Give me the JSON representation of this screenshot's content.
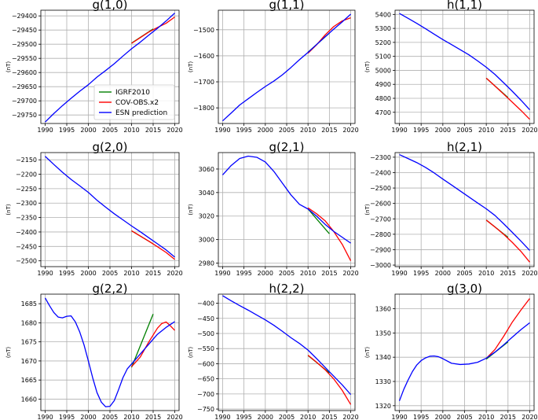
{
  "colors": {
    "igrf": "#008000",
    "cov": "#ff0000",
    "esn": "#0000ff",
    "grid": "#b0b0b0"
  },
  "legend": [
    "IGRF2010",
    "COV-OBS.x2",
    "ESN prediction"
  ],
  "chart_data": [
    {
      "type": "line",
      "title": "g(1,0)",
      "ylabel": "(nT)",
      "xlim": [
        1989,
        2021
      ],
      "ylim": [
        -29780,
        -29380
      ],
      "xticks": [
        1990,
        1995,
        2000,
        2005,
        2010,
        2015,
        2020
      ],
      "yticks": [
        -29750,
        -29700,
        -29650,
        -29600,
        -29550,
        -29500,
        -29450,
        -29400
      ],
      "series": [
        {
          "name": "IGRF2010",
          "x": [
            2010,
            2015
          ],
          "y": [
            -29496,
            -29446
          ]
        },
        {
          "name": "COV-OBS.x2",
          "x": [
            2010,
            2012,
            2014,
            2016,
            2018,
            2020
          ],
          "y": [
            -29497,
            -29477,
            -29457,
            -29441,
            -29426,
            -29404
          ]
        },
        {
          "name": "ESN prediction",
          "x": [
            1990,
            1992,
            1994,
            1996,
            1998,
            2000,
            2002,
            2004,
            2006,
            2008,
            2010,
            2012,
            2014,
            2016,
            2018,
            2020
          ],
          "y": [
            -29775,
            -29745,
            -29717,
            -29691,
            -29666,
            -29643,
            -29616,
            -29593,
            -29569,
            -29542,
            -29516,
            -29493,
            -29468,
            -29444,
            -29418,
            -29390
          ]
        }
      ]
    },
    {
      "type": "line",
      "title": "g(1,1)",
      "ylabel": "(nT)",
      "xlim": [
        1989,
        2021
      ],
      "ylim": [
        -1860,
        -1425
      ],
      "xticks": [
        1990,
        1995,
        2000,
        2005,
        2010,
        2015,
        2020
      ],
      "yticks": [
        -1800,
        -1700,
        -1600,
        -1500
      ],
      "series": [
        {
          "name": "IGRF2010",
          "x": [
            2010,
            2015
          ],
          "y": [
            -1586,
            -1513
          ]
        },
        {
          "name": "COV-OBS.x2",
          "x": [
            2010,
            2012,
            2014,
            2016,
            2018,
            2020
          ],
          "y": [
            -1590,
            -1558,
            -1520,
            -1488,
            -1466,
            -1454
          ]
        },
        {
          "name": "ESN prediction",
          "x": [
            1990,
            1992,
            1994,
            1996,
            1998,
            2000,
            2002,
            2004,
            2006,
            2008,
            2010,
            2012,
            2014,
            2016,
            2018,
            2020
          ],
          "y": [
            -1850,
            -1820,
            -1789,
            -1765,
            -1741,
            -1718,
            -1697,
            -1673,
            -1645,
            -1615,
            -1587,
            -1557,
            -1527,
            -1498,
            -1470,
            -1440
          ]
        }
      ]
    },
    {
      "type": "line",
      "title": "h(1,1)",
      "ylabel": "(nT)",
      "xlim": [
        1989,
        2021
      ],
      "ylim": [
        4620,
        5430
      ],
      "xticks": [
        1990,
        1995,
        2000,
        2005,
        2010,
        2015,
        2020
      ],
      "yticks": [
        4700,
        4800,
        4900,
        5000,
        5100,
        5200,
        5300,
        5400
      ],
      "series": [
        {
          "name": "IGRF2010",
          "x": [
            2010,
            2015
          ],
          "y": [
            4944,
            4805
          ]
        },
        {
          "name": "COV-OBS.x2",
          "x": [
            2010,
            2012,
            2014,
            2016,
            2018,
            2020
          ],
          "y": [
            4944,
            4888,
            4830,
            4772,
            4713,
            4650
          ]
        },
        {
          "name": "ESN prediction",
          "x": [
            1990,
            1992,
            1994,
            1996,
            1998,
            2000,
            2002,
            2004,
            2006,
            2008,
            2010,
            2012,
            2014,
            2016,
            2018,
            2020
          ],
          "y": [
            5407,
            5372,
            5336,
            5298,
            5259,
            5220,
            5184,
            5148,
            5111,
            5068,
            5022,
            4971,
            4911,
            4850,
            4786,
            4718
          ]
        }
      ]
    },
    {
      "type": "line",
      "title": "g(2,0)",
      "ylabel": "(nT)",
      "xlim": [
        1989,
        2021
      ],
      "ylim": [
        -2520,
        -2125
      ],
      "xticks": [
        1990,
        1995,
        2000,
        2005,
        2010,
        2015,
        2020
      ],
      "yticks": [
        -2500,
        -2450,
        -2400,
        -2350,
        -2300,
        -2250,
        -2200,
        -2150
      ],
      "series": [
        {
          "name": "IGRF2010",
          "x": [
            2010,
            2015
          ],
          "y": [
            -2396,
            -2441
          ]
        },
        {
          "name": "COV-OBS.x2",
          "x": [
            2010,
            2012,
            2014,
            2016,
            2018,
            2020
          ],
          "y": [
            -2396,
            -2414,
            -2432,
            -2451,
            -2471,
            -2495
          ]
        },
        {
          "name": "ESN prediction",
          "x": [
            1990,
            1992,
            1994,
            1996,
            1998,
            2000,
            2002,
            2004,
            2006,
            2008,
            2010,
            2012,
            2014,
            2016,
            2018,
            2020
          ],
          "y": [
            -2138,
            -2166,
            -2193,
            -2218,
            -2240,
            -2263,
            -2290,
            -2314,
            -2337,
            -2358,
            -2379,
            -2399,
            -2420,
            -2441,
            -2462,
            -2487
          ]
        }
      ]
    },
    {
      "type": "line",
      "title": "g(2,1)",
      "ylabel": "(nT)",
      "xlim": [
        1989,
        2021
      ],
      "ylim": [
        2977,
        3074
      ],
      "xticks": [
        1990,
        1995,
        2000,
        2005,
        2010,
        2015,
        2020
      ],
      "yticks": [
        2980,
        3000,
        3020,
        3040,
        3060
      ],
      "series": [
        {
          "name": "IGRF2010",
          "x": [
            2010,
            2015
          ],
          "y": [
            3026,
            3005
          ]
        },
        {
          "name": "COV-OBS.x2",
          "x": [
            2010,
            2012,
            2014,
            2016,
            2018,
            2020
          ],
          "y": [
            3027,
            3022,
            3016,
            3007,
            2996,
            2982
          ]
        },
        {
          "name": "ESN prediction",
          "x": [
            1990,
            1992,
            1994,
            1996,
            1998,
            2000,
            2002,
            2004,
            2006,
            2008,
            2010,
            2012,
            2014,
            2016,
            2018,
            2020
          ],
          "y": [
            3055,
            3063,
            3069,
            3071,
            3070,
            3066,
            3058,
            3048,
            3038,
            3030,
            3026,
            3020,
            3013,
            3007,
            3002,
            2997
          ]
        }
      ]
    },
    {
      "type": "line",
      "title": "h(2,1)",
      "ylabel": "(nT)",
      "xlim": [
        1989,
        2021
      ],
      "ylim": [
        -3010,
        -2270
      ],
      "xticks": [
        1990,
        1995,
        2000,
        2005,
        2010,
        2015,
        2020
      ],
      "yticks": [
        -3000,
        -2900,
        -2800,
        -2700,
        -2600,
        -2500,
        -2400,
        -2300
      ],
      "series": [
        {
          "name": "IGRF2010",
          "x": [
            2010,
            2015
          ],
          "y": [
            -2708,
            -2820
          ]
        },
        {
          "name": "COV-OBS.x2",
          "x": [
            2010,
            2012,
            2014,
            2016,
            2018,
            2020
          ],
          "y": [
            -2708,
            -2753,
            -2800,
            -2853,
            -2912,
            -2981
          ]
        },
        {
          "name": "ESN prediction",
          "x": [
            1990,
            1992,
            1994,
            1996,
            1998,
            2000,
            2002,
            2004,
            2006,
            2008,
            2010,
            2012,
            2014,
            2016,
            2018,
            2020
          ],
          "y": [
            -2283,
            -2309,
            -2335,
            -2366,
            -2402,
            -2442,
            -2480,
            -2519,
            -2558,
            -2597,
            -2635,
            -2678,
            -2732,
            -2788,
            -2845,
            -2905
          ]
        }
      ]
    },
    {
      "type": "line",
      "title": "g(2,2)",
      "ylabel": "(nT)",
      "xlim": [
        1989,
        2021
      ],
      "ylim": [
        1657,
        1687.5
      ],
      "xticks": [
        1990,
        1995,
        2000,
        2005,
        2010,
        2015,
        2020
      ],
      "yticks": [
        1660,
        1665,
        1670,
        1675,
        1680,
        1685
      ],
      "series": [
        {
          "name": "IGRF2010",
          "x": [
            2010,
            2015
          ],
          "y": [
            1668.3,
            1682.3
          ]
        },
        {
          "name": "COV-OBS.x2",
          "x": [
            2010,
            2012,
            2014,
            2016,
            2017,
            2018,
            2019,
            2020
          ],
          "y": [
            1668.5,
            1671.0,
            1675.0,
            1678.6,
            1679.8,
            1680.2,
            1679.2,
            1678.0
          ]
        },
        {
          "name": "ESN prediction",
          "x": [
            1990,
            1991,
            1992,
            1993,
            1994,
            1995,
            1996,
            1997,
            1998,
            1999,
            2000,
            2001,
            2002,
            2003,
            2004,
            2005,
            2006,
            2007,
            2008,
            2009,
            2010,
            2012,
            2014,
            2016,
            2018,
            2020
          ],
          "y": [
            1686.5,
            1684.5,
            1682.7,
            1681.5,
            1681.3,
            1681.7,
            1681.8,
            1680.2,
            1677.6,
            1674.2,
            1670.0,
            1665.6,
            1661.7,
            1659.2,
            1658.0,
            1658.1,
            1659.6,
            1662.5,
            1665.6,
            1667.9,
            1669.2,
            1671.8,
            1674.4,
            1677.0,
            1678.8,
            1680.3
          ]
        }
      ]
    },
    {
      "type": "line",
      "title": "h(2,2)",
      "ylabel": "(nT)",
      "xlim": [
        1989,
        2021
      ],
      "ylim": [
        -755,
        -370
      ],
      "xticks": [
        1990,
        1995,
        2000,
        2005,
        2010,
        2015,
        2020
      ],
      "yticks": [
        -750,
        -700,
        -650,
        -600,
        -550,
        -500,
        -450,
        -400
      ],
      "series": [
        {
          "name": "IGRF2010",
          "x": [
            2010,
            2015
          ],
          "y": [
            -573,
            -630
          ]
        },
        {
          "name": "COV-OBS.x2",
          "x": [
            2010,
            2012,
            2014,
            2016,
            2018,
            2020
          ],
          "y": [
            -572,
            -595,
            -620,
            -650,
            -688,
            -735
          ]
        },
        {
          "name": "ESN prediction",
          "x": [
            1990,
            1992,
            1994,
            1996,
            1998,
            2000,
            2002,
            2004,
            2006,
            2008,
            2010,
            2012,
            2014,
            2016,
            2018,
            2020
          ],
          "y": [
            -375,
            -392,
            -408,
            -423,
            -439,
            -455,
            -473,
            -493,
            -514,
            -533,
            -555,
            -583,
            -612,
            -641,
            -670,
            -702
          ]
        }
      ]
    },
    {
      "type": "line",
      "title": "g(3,0)",
      "ylabel": "(nT)",
      "xlim": [
        1989,
        2021
      ],
      "ylim": [
        1318,
        1366
      ],
      "xticks": [
        1990,
        1995,
        2000,
        2005,
        2010,
        2015,
        2020
      ],
      "yticks": [
        1320,
        1330,
        1340,
        1350,
        1360
      ],
      "series": [
        {
          "name": "IGRF2010",
          "x": [
            2010,
            2015
          ],
          "y": [
            1339.2,
            1346.3
          ]
        },
        {
          "name": "COV-OBS.x2",
          "x": [
            2010,
            2012,
            2014,
            2016,
            2018,
            2020
          ],
          "y": [
            1339.5,
            1343.2,
            1348.6,
            1354.5,
            1359.5,
            1364.2
          ]
        },
        {
          "name": "ESN prediction",
          "x": [
            1990,
            1991,
            1992,
            1993,
            1994,
            1995,
            1996,
            1997,
            1998,
            1999,
            2000,
            2002,
            2004,
            2006,
            2008,
            2010,
            2012,
            2014,
            2016,
            2018,
            2020
          ],
          "y": [
            1322,
            1326.7,
            1330.6,
            1334.1,
            1336.8,
            1338.6,
            1339.7,
            1340.4,
            1340.5,
            1340.2,
            1339.4,
            1337.5,
            1337.0,
            1337.2,
            1337.9,
            1339.6,
            1342.1,
            1345.1,
            1348.3,
            1351.4,
            1354.2
          ]
        }
      ]
    }
  ]
}
